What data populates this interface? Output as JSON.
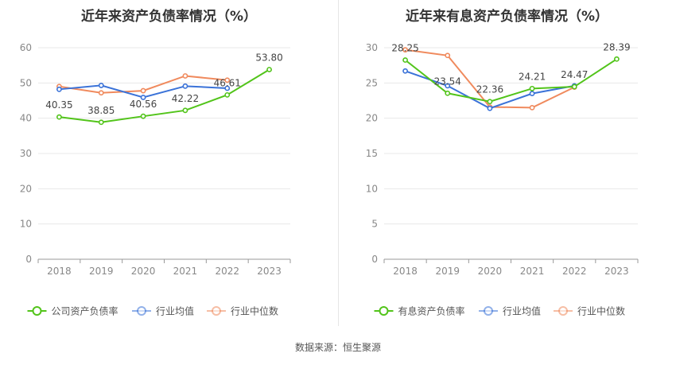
{
  "source_text": "数据来源：恒生聚源",
  "chart_data": [
    {
      "type": "line",
      "title": "近年来资产负债率情况（%）",
      "x": [
        "2018",
        "2019",
        "2020",
        "2021",
        "2022",
        "2023"
      ],
      "ylim": [
        0,
        60
      ],
      "yticks": [
        0,
        10,
        20,
        30,
        40,
        50,
        60
      ],
      "grid": true,
      "legend_position": "bottom",
      "series": [
        {
          "name": "公司资产负债率",
          "color": "#52c41a",
          "values": [
            40.35,
            38.85,
            40.56,
            42.22,
            46.61,
            53.8
          ],
          "labels": [
            "40.35",
            "38.85",
            "40.56",
            "42.22",
            "46.61",
            "53.80"
          ]
        },
        {
          "name": "行业均值",
          "color": "#3a72d8",
          "values": [
            48.2,
            49.3,
            45.9,
            49.1,
            48.5,
            null
          ],
          "labels": null
        },
        {
          "name": "行业中位数",
          "color": "#f08a5d",
          "values": [
            49.0,
            47.2,
            47.8,
            52.0,
            50.8,
            null
          ],
          "labels": null
        }
      ]
    },
    {
      "type": "line",
      "title": "近年来有息资产负债率情况（%）",
      "x": [
        "2018",
        "2019",
        "2020",
        "2021",
        "2022",
        "2023"
      ],
      "ylim": [
        0,
        30
      ],
      "yticks": [
        0,
        5,
        10,
        15,
        20,
        25,
        30
      ],
      "grid": true,
      "legend_position": "bottom",
      "series": [
        {
          "name": "有息资产负债率",
          "color": "#52c41a",
          "values": [
            28.25,
            23.54,
            22.36,
            24.21,
            24.47,
            28.39
          ],
          "labels": [
            "28.25",
            "23.54",
            "22.36",
            "24.21",
            "24.47",
            "28.39"
          ]
        },
        {
          "name": "行业均值",
          "color": "#3a72d8",
          "values": [
            26.7,
            24.6,
            21.4,
            23.5,
            24.6,
            null
          ],
          "labels": null
        },
        {
          "name": "行业中位数",
          "color": "#f08a5d",
          "values": [
            29.7,
            28.9,
            21.6,
            21.5,
            24.4,
            null
          ],
          "labels": null
        }
      ]
    }
  ]
}
